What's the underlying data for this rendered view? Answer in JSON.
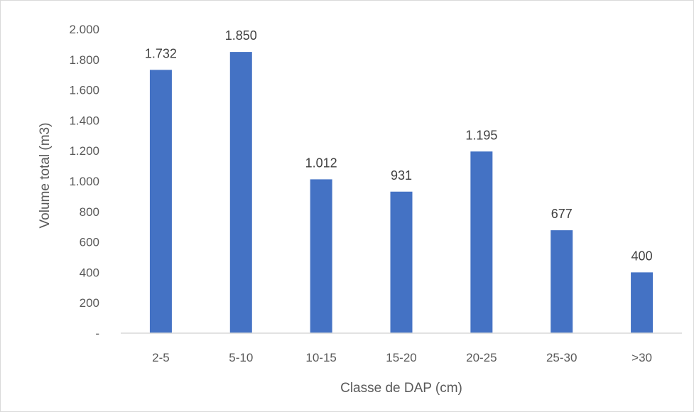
{
  "chart_data": {
    "type": "bar",
    "categories": [
      "2-5",
      "5-10",
      "10-15",
      "15-20",
      "20-25",
      "25-30",
      ">30"
    ],
    "values": [
      1732,
      1850,
      1012,
      931,
      1195,
      677,
      400
    ],
    "data_labels": [
      "1.732",
      "1.850",
      "1.012",
      "931",
      "1.195",
      "677",
      "400"
    ],
    "xlabel": "Classe de DAP (cm)",
    "ylabel": "Volume total (m3)",
    "ylim": [
      0,
      2000
    ],
    "yticks": [
      0,
      200,
      400,
      600,
      800,
      1000,
      1200,
      1400,
      1600,
      1800,
      2000
    ],
    "ytick_labels": [
      "-",
      "200",
      "400",
      "600",
      "800",
      "1.000",
      "1.200",
      "1.400",
      "1.600",
      "1.800",
      "2.000"
    ],
    "grid": false,
    "legend": "none",
    "bar_color": "#4472c4",
    "axis_color": "#d9d9d9"
  }
}
